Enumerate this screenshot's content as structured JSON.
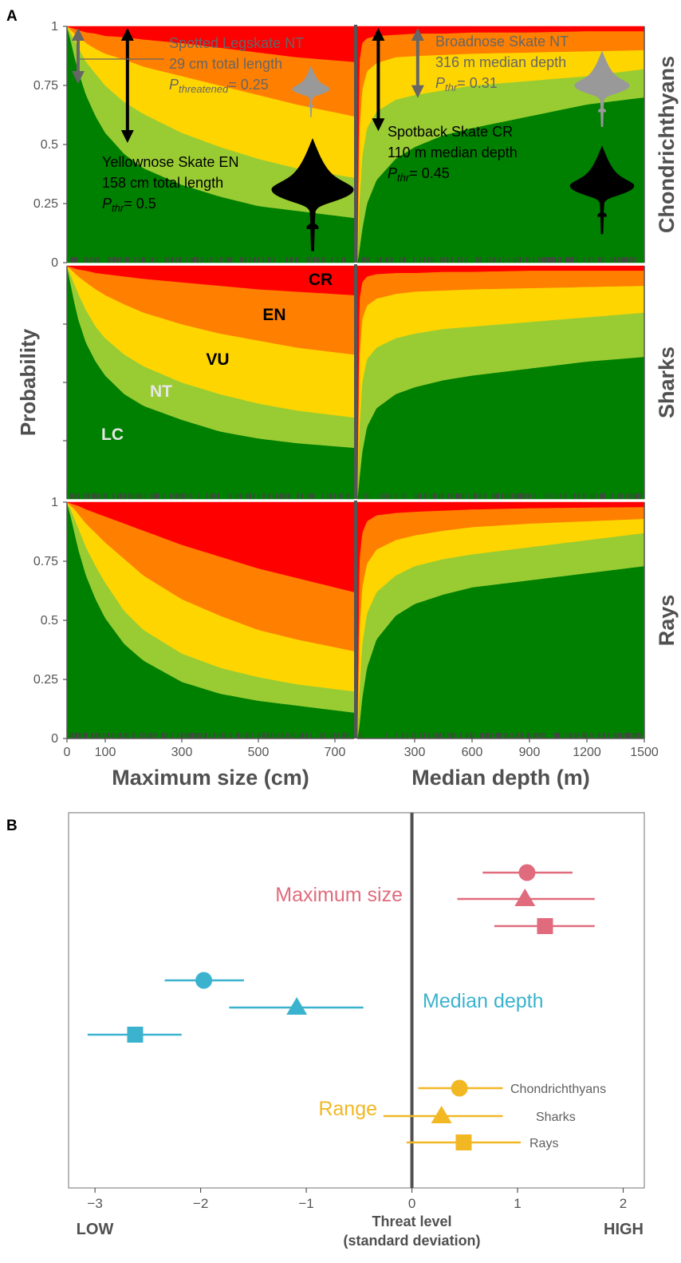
{
  "panel_labels": {
    "a": "A",
    "b": "B"
  },
  "chart_data": [
    {
      "type": "area",
      "subtype": "ordinal-probability-stacked-area-grid",
      "stack_order_bottom_to_top": [
        "LC",
        "NT",
        "VU",
        "EN",
        "CR"
      ],
      "category_colors": {
        "LC": "#008000",
        "NT": "#99cc33",
        "VU": "#ffd500",
        "EN": "#ff7f00",
        "CR": "#ff0000"
      },
      "category_labels": {
        "LC": "LC",
        "NT": "NT",
        "VU": "VU",
        "EN": "EN",
        "CR": "CR"
      },
      "ylabel": "Probability",
      "yticks": [
        0,
        0.25,
        0.5,
        0.75,
        1
      ],
      "ytick_labels": [
        "0",
        "0.25",
        "0.5",
        "0.75",
        "1"
      ],
      "ylim": [
        0,
        1
      ],
      "columns": [
        {
          "id": "size",
          "xlabel": "Maximum size (cm)",
          "xlim": [
            0,
            750
          ],
          "xticks": [
            0,
            100,
            300,
            500,
            700
          ],
          "xtick_labels": [
            "0",
            "100",
            "300",
            "500",
            "700"
          ]
        },
        {
          "id": "depth",
          "xlabel": "Median depth (m)",
          "xlim": [
            0,
            1500
          ],
          "xticks": [
            300,
            600,
            900,
            1200,
            1500
          ],
          "xtick_labels": [
            "300",
            "600",
            "900",
            "1200",
            "1500"
          ]
        }
      ],
      "rows": [
        {
          "id": "chondrichthyans",
          "label": "Chondrichthyans",
          "size": {
            "x": [
              0,
              10,
              20,
              30,
              50,
              75,
              100,
              150,
              200,
              300,
              400,
              500,
              600,
              750
            ],
            "cumulative_upper_LC": [
              1.0,
              0.94,
              0.87,
              0.81,
              0.71,
              0.62,
              0.55,
              0.46,
              0.4,
              0.33,
              0.28,
              0.24,
              0.22,
              0.19
            ],
            "cumulative_upper_NT": [
              1.0,
              0.97,
              0.94,
              0.91,
              0.85,
              0.8,
              0.75,
              0.68,
              0.63,
              0.55,
              0.49,
              0.44,
              0.4,
              0.36
            ],
            "cumulative_upper_VU": [
              1.0,
              0.985,
              0.97,
              0.96,
              0.93,
              0.905,
              0.885,
              0.86,
              0.83,
              0.79,
              0.75,
              0.71,
              0.67,
              0.62
            ],
            "cumulative_upper_EN": [
              1.0,
              0.995,
              0.99,
              0.985,
              0.975,
              0.97,
              0.96,
              0.955,
              0.945,
              0.93,
              0.91,
              0.89,
              0.87,
              0.85
            ]
          },
          "depth": {
            "x": [
              0,
              10,
              25,
              50,
              100,
              200,
              300,
              450,
              600,
              900,
              1200,
              1500
            ],
            "cumulative_upper_LC": [
              0.0,
              0.05,
              0.14,
              0.25,
              0.35,
              0.44,
              0.49,
              0.54,
              0.57,
              0.62,
              0.67,
              0.7
            ],
            "cumulative_upper_NT": [
              0.0,
              0.25,
              0.45,
              0.57,
              0.64,
              0.69,
              0.71,
              0.73,
              0.75,
              0.77,
              0.79,
              0.82
            ],
            "cumulative_upper_VU": [
              0.0,
              0.55,
              0.73,
              0.81,
              0.845,
              0.87,
              0.875,
              0.88,
              0.885,
              0.89,
              0.895,
              0.9
            ],
            "cumulative_upper_EN": [
              0.0,
              0.85,
              0.93,
              0.95,
              0.96,
              0.965,
              0.97,
              0.97,
              0.975,
              0.975,
              0.98,
              0.98
            ]
          }
        },
        {
          "id": "sharks",
          "label": "Sharks",
          "size": {
            "x": [
              0,
              10,
              20,
              30,
              50,
              75,
              100,
              150,
              200,
              300,
              400,
              500,
              600,
              750
            ],
            "cumulative_upper_LC": [
              1.0,
              0.92,
              0.84,
              0.77,
              0.67,
              0.59,
              0.53,
              0.45,
              0.4,
              0.34,
              0.29,
              0.26,
              0.24,
              0.22
            ],
            "cumulative_upper_NT": [
              1.0,
              0.96,
              0.92,
              0.88,
              0.81,
              0.74,
              0.69,
              0.62,
              0.57,
              0.5,
              0.45,
              0.41,
              0.38,
              0.35
            ],
            "cumulative_upper_VU": [
              1.0,
              0.985,
              0.97,
              0.955,
              0.93,
              0.9,
              0.875,
              0.835,
              0.8,
              0.75,
              0.71,
              0.68,
              0.65,
              0.62
            ],
            "cumulative_upper_EN": [
              1.0,
              0.995,
              0.99,
              0.985,
              0.98,
              0.97,
              0.965,
              0.955,
              0.945,
              0.93,
              0.915,
              0.9,
              0.89,
              0.875
            ]
          },
          "depth": {
            "x": [
              0,
              10,
              25,
              50,
              100,
              200,
              300,
              450,
              600,
              900,
              1200,
              1500
            ],
            "cumulative_upper_LC": [
              0.0,
              0.08,
              0.2,
              0.31,
              0.39,
              0.45,
              0.48,
              0.51,
              0.53,
              0.56,
              0.59,
              0.61
            ],
            "cumulative_upper_NT": [
              0.0,
              0.3,
              0.5,
              0.6,
              0.65,
              0.69,
              0.71,
              0.73,
              0.74,
              0.76,
              0.78,
              0.8
            ],
            "cumulative_upper_VU": [
              0.0,
              0.6,
              0.77,
              0.83,
              0.86,
              0.88,
              0.89,
              0.895,
              0.9,
              0.905,
              0.91,
              0.915
            ],
            "cumulative_upper_EN": [
              0.0,
              0.85,
              0.93,
              0.955,
              0.965,
              0.97,
              0.97,
              0.975,
              0.975,
              0.98,
              0.98,
              0.98
            ]
          }
        },
        {
          "id": "rays",
          "label": "Rays",
          "size": {
            "x": [
              0,
              10,
              20,
              30,
              50,
              75,
              100,
              150,
              200,
              300,
              400,
              500,
              600,
              750
            ],
            "cumulative_upper_LC": [
              1.0,
              0.94,
              0.87,
              0.8,
              0.69,
              0.59,
              0.51,
              0.4,
              0.33,
              0.24,
              0.19,
              0.16,
              0.14,
              0.11
            ],
            "cumulative_upper_NT": [
              1.0,
              0.97,
              0.93,
              0.89,
              0.81,
              0.73,
              0.66,
              0.54,
              0.46,
              0.36,
              0.3,
              0.26,
              0.23,
              0.2
            ],
            "cumulative_upper_VU": [
              1.0,
              0.985,
              0.97,
              0.95,
              0.91,
              0.87,
              0.83,
              0.76,
              0.69,
              0.59,
              0.52,
              0.46,
              0.42,
              0.37
            ],
            "cumulative_upper_EN": [
              1.0,
              0.995,
              0.99,
              0.985,
              0.97,
              0.955,
              0.94,
              0.91,
              0.88,
              0.82,
              0.77,
              0.72,
              0.68,
              0.62
            ]
          },
          "depth": {
            "x": [
              0,
              10,
              25,
              50,
              100,
              200,
              300,
              450,
              600,
              900,
              1200,
              1500
            ],
            "cumulative_upper_LC": [
              0.0,
              0.05,
              0.17,
              0.3,
              0.42,
              0.52,
              0.57,
              0.61,
              0.64,
              0.67,
              0.7,
              0.73
            ],
            "cumulative_upper_NT": [
              0.0,
              0.2,
              0.4,
              0.53,
              0.62,
              0.69,
              0.73,
              0.76,
              0.78,
              0.81,
              0.84,
              0.87
            ],
            "cumulative_upper_VU": [
              0.0,
              0.45,
              0.64,
              0.74,
              0.8,
              0.84,
              0.86,
              0.88,
              0.895,
              0.91,
              0.92,
              0.93
            ],
            "cumulative_upper_EN": [
              0.0,
              0.75,
              0.87,
              0.92,
              0.945,
              0.955,
              0.96,
              0.965,
              0.97,
              0.975,
              0.978,
              0.98
            ]
          }
        }
      ],
      "annotations": [
        {
          "id": "spotted",
          "panel": "chondrichthyans-size",
          "color": "#666666",
          "lines": [
            "Spotted Legskate NT",
            "29 cm total length"
          ],
          "p_label": "P",
          "p_sub": "threatened",
          "p_val": "= 0.25",
          "x": 29,
          "probability": 0.25
        },
        {
          "id": "yellownose",
          "panel": "chondrichthyans-size",
          "color": "#000000",
          "lines": [
            "Yellownose Skate EN",
            "158 cm total length"
          ],
          "p_label": "P",
          "p_sub": "thr",
          "p_val": "= 0.5",
          "x": 158,
          "probability": 0.5
        },
        {
          "id": "broadnose",
          "panel": "chondrichthyans-depth",
          "color": "#666666",
          "lines": [
            "Broadnose Skate NT",
            "316 m median depth"
          ],
          "p_label": "P",
          "p_sub": "thr",
          "p_val": "= 0.31",
          "x": 316,
          "probability": 0.31
        },
        {
          "id": "spotback",
          "panel": "chondrichthyans-depth",
          "color": "#000000",
          "lines": [
            "Spotback Skate CR",
            "110 m median depth"
          ],
          "p_label": "P",
          "p_sub": "thr",
          "p_val": "= 0.45",
          "x": 110,
          "probability": 0.45
        }
      ]
    },
    {
      "type": "scatter",
      "subtype": "coefficient-plot",
      "xlim": [
        -3.25,
        2.2
      ],
      "xticks": [
        -3,
        -2,
        -1,
        0,
        1,
        2
      ],
      "xtick_labels": [
        "−3",
        "−2",
        "−1",
        "0",
        "1",
        "2"
      ],
      "xlabel_lines": [
        "Threat level",
        "(standard deviation)"
      ],
      "low_label": "LOW",
      "high_label": "HIGH",
      "groups": [
        {
          "name": "Maximum size",
          "color": "#e06b7d",
          "points": [
            {
              "series": "Chondrichthyans",
              "marker": "circle",
              "estimate": 1.09,
              "lower": 0.67,
              "upper": 1.52
            },
            {
              "series": "Sharks",
              "marker": "triangle",
              "estimate": 1.07,
              "lower": 0.43,
              "upper": 1.73
            },
            {
              "series": "Rays",
              "marker": "square",
              "estimate": 1.26,
              "lower": 0.78,
              "upper": 1.73
            }
          ]
        },
        {
          "name": "Median depth",
          "color": "#3bb3cf",
          "points": [
            {
              "series": "Chondrichthyans",
              "marker": "circle",
              "estimate": -1.97,
              "lower": -2.34,
              "upper": -1.59
            },
            {
              "series": "Sharks",
              "marker": "triangle",
              "estimate": -1.09,
              "lower": -1.73,
              "upper": -0.46
            },
            {
              "series": "Rays",
              "marker": "square",
              "estimate": -2.62,
              "lower": -3.07,
              "upper": -2.18
            }
          ]
        },
        {
          "name": "Range",
          "color": "#f2b824",
          "points": [
            {
              "series": "Chondrichthyans",
              "marker": "circle",
              "estimate": 0.45,
              "lower": 0.06,
              "upper": 0.86
            },
            {
              "series": "Sharks",
              "marker": "triangle",
              "estimate": 0.28,
              "lower": -0.27,
              "upper": 0.86
            },
            {
              "series": "Rays",
              "marker": "square",
              "estimate": 0.49,
              "lower": -0.05,
              "upper": 1.03
            }
          ]
        }
      ],
      "series_legend": [
        "Chondrichthyans",
        "Sharks",
        "Rays"
      ]
    }
  ]
}
